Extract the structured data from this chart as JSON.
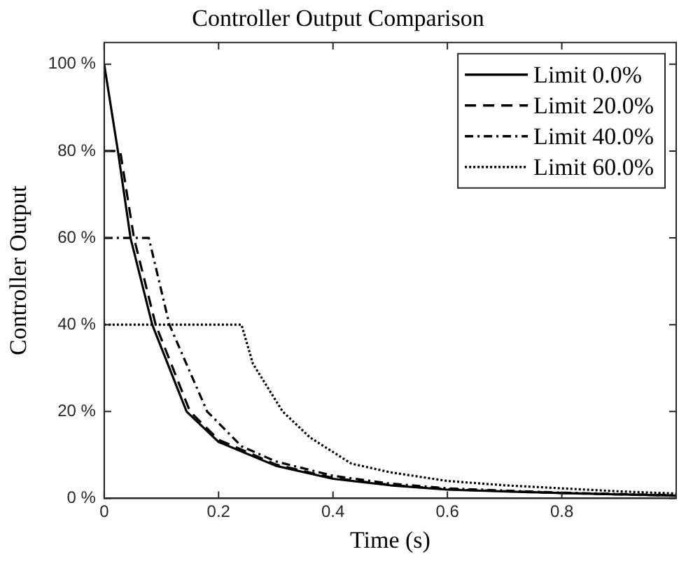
{
  "chart_data": {
    "type": "line",
    "title": "Controller Output Comparison",
    "xlabel": "Time (s)",
    "ylabel": "Controller Output",
    "xlim": [
      0,
      1
    ],
    "xticks": [
      0,
      0.2,
      0.4,
      0.6,
      0.8
    ],
    "ylim": [
      0,
      105
    ],
    "yticks": [
      {
        "value": 0,
        "label": "0 %"
      },
      {
        "value": 20,
        "label": "20 %"
      },
      {
        "value": 40,
        "label": "40 %"
      },
      {
        "value": 60,
        "label": "60 %"
      },
      {
        "value": 80,
        "label": "80 %"
      },
      {
        "value": 100,
        "label": "100 %"
      }
    ],
    "grid": false,
    "legend": "top right",
    "marker": "none",
    "series": [
      {
        "name": "Limit 0.0%",
        "color": "#000000",
        "line_style": "solid",
        "x": [
          0,
          0.024,
          0.046,
          0.084,
          0.144,
          0.2,
          0.3,
          0.4,
          0.5,
          0.6,
          0.8,
          1.0
        ],
        "values": [
          100,
          80,
          60,
          40,
          20,
          13,
          7.5,
          4.5,
          3,
          2,
          1.2,
          0.6
        ]
      },
      {
        "name": "Limit 20.0%",
        "color": "#000000",
        "line_style": "dashed",
        "x": [
          0,
          0.028,
          0.052,
          0.09,
          0.15,
          0.2,
          0.3,
          0.4,
          0.5,
          0.6,
          0.8,
          1.0
        ],
        "values": [
          80,
          80,
          60,
          40,
          20,
          13.5,
          7.8,
          4.7,
          3.1,
          2.1,
          1.2,
          0.6
        ]
      },
      {
        "name": "Limit 40.0%",
        "color": "#000000",
        "line_style": "dashdot",
        "x": [
          0,
          0.078,
          0.114,
          0.18,
          0.24,
          0.3,
          0.4,
          0.5,
          0.6,
          0.8,
          1.0
        ],
        "values": [
          60,
          60,
          40,
          20,
          12,
          8.5,
          5.2,
          3.4,
          2.3,
          1.3,
          0.7
        ]
      },
      {
        "name": "Limit 60.0%",
        "color": "#000000",
        "line_style": "dotted",
        "x": [
          0,
          0.24,
          0.26,
          0.312,
          0.36,
          0.432,
          0.5,
          0.6,
          0.7,
          0.8,
          0.9,
          1.0
        ],
        "values": [
          40,
          40,
          31,
          20,
          14,
          8,
          6,
          4,
          3,
          2.3,
          1.6,
          1.1
        ]
      }
    ]
  }
}
